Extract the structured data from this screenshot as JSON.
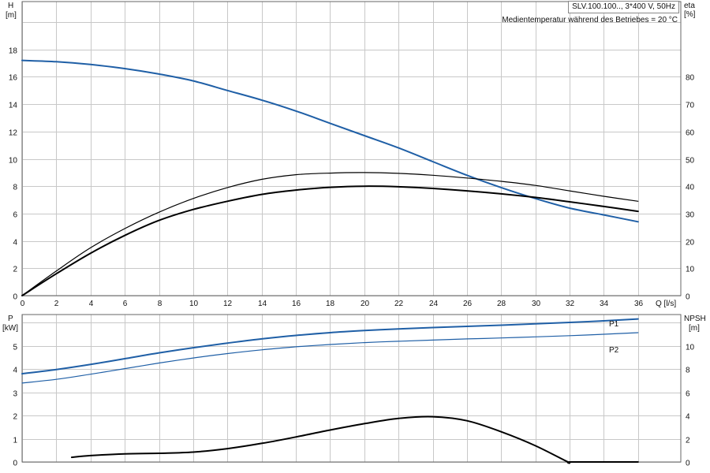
{
  "header": {
    "model_text": "SLV.100.100.., 3*400 V, 50Hz",
    "note": "Medientemperatur während des Betriebes = 20 °C"
  },
  "colors": {
    "blue": "#1f5fa6",
    "black": "#000000",
    "grid": "#c8c8c8"
  },
  "chart_data": [
    {
      "type": "line",
      "name": "head-efficiency",
      "x_label": "Q [l/s]",
      "x_ticks": [
        "0",
        "2",
        "4",
        "6",
        "8",
        "10",
        "12",
        "14",
        "16",
        "18",
        "20",
        "22",
        "24",
        "26",
        "28",
        "30",
        "32",
        "34",
        "36"
      ],
      "xlim": [
        0,
        38.5
      ],
      "y_left_label_top": "H",
      "y_left_label_unit": "[m]",
      "y_left_ticks": [
        "0",
        "2",
        "4",
        "6",
        "8",
        "10",
        "12",
        "14",
        "16",
        "18"
      ],
      "ylim_left": [
        0,
        21.5
      ],
      "y_right_label_top": "eta",
      "y_right_label_unit": "[%]",
      "y_right_ticks": [
        "0",
        "10",
        "20",
        "30",
        "40",
        "50",
        "60",
        "70",
        "80"
      ],
      "ylim_right": [
        0,
        107.5
      ],
      "grid": true,
      "series": [
        {
          "axis": "left",
          "color": "#1f5fa6",
          "width": 2,
          "x": [
            0,
            2,
            4,
            6,
            8,
            10,
            12,
            14,
            16,
            18,
            20,
            22,
            24,
            26,
            28,
            30,
            32,
            34,
            36
          ],
          "y": [
            17.2,
            17.1,
            16.9,
            16.6,
            16.2,
            15.7,
            15.0,
            14.3,
            13.5,
            12.6,
            11.7,
            10.8,
            9.8,
            8.8,
            7.9,
            7.1,
            6.4,
            5.9,
            5.4
          ]
        },
        {
          "axis": "right",
          "color": "#000000",
          "width": 1.2,
          "x": [
            0,
            2,
            4,
            6,
            8,
            10,
            12,
            14,
            16,
            18,
            20,
            22,
            24,
            26,
            28,
            30,
            32,
            34,
            36
          ],
          "y": [
            0,
            9,
            17.5,
            24.5,
            30.5,
            35.5,
            39.5,
            42.5,
            44.2,
            44.8,
            45,
            44.7,
            44,
            43,
            41.8,
            40.3,
            38.3,
            36.3,
            34.5
          ]
        },
        {
          "axis": "right",
          "color": "#000000",
          "width": 2,
          "x": [
            0,
            2,
            4,
            6,
            8,
            10,
            12,
            14,
            16,
            18,
            20,
            22,
            24,
            26,
            28,
            30,
            32,
            34,
            36
          ],
          "y": [
            0,
            8,
            15.5,
            22,
            27.5,
            31.5,
            34.5,
            37,
            38.6,
            39.6,
            40,
            39.8,
            39.2,
            38.3,
            37.2,
            35.9,
            34.3,
            32.6,
            30.8
          ]
        }
      ]
    },
    {
      "type": "line",
      "name": "power-npsh",
      "y_left_label_top": "P",
      "y_left_label_unit": "[kW]",
      "y_left_ticks": [
        "0",
        "1",
        "2",
        "3",
        "4",
        "5"
      ],
      "ylim_left": [
        0,
        6.35
      ],
      "y_right_label_top": "NPSH",
      "y_right_label_unit": "[m]",
      "y_right_ticks": [
        "0",
        "2",
        "4",
        "6",
        "8",
        "10"
      ],
      "ylim_right": [
        0,
        12.7
      ],
      "grid": true,
      "series": [
        {
          "axis": "left",
          "name": "P1",
          "color": "#1f5fa6",
          "width": 2,
          "x": [
            0,
            2,
            4,
            6,
            8,
            10,
            12,
            14,
            16,
            18,
            20,
            22,
            24,
            26,
            28,
            30,
            32,
            34,
            36
          ],
          "y": [
            3.8,
            3.98,
            4.2,
            4.45,
            4.7,
            4.92,
            5.12,
            5.3,
            5.45,
            5.57,
            5.66,
            5.73,
            5.79,
            5.84,
            5.89,
            5.95,
            6.01,
            6.08,
            6.16
          ]
        },
        {
          "axis": "left",
          "name": "P2",
          "color": "#1f5fa6",
          "width": 1.2,
          "x": [
            0,
            2,
            4,
            6,
            8,
            10,
            12,
            14,
            16,
            18,
            20,
            22,
            24,
            26,
            28,
            30,
            32,
            34,
            36
          ],
          "y": [
            3.4,
            3.56,
            3.78,
            4.02,
            4.26,
            4.48,
            4.67,
            4.83,
            4.96,
            5.06,
            5.14,
            5.2,
            5.25,
            5.3,
            5.34,
            5.39,
            5.44,
            5.5,
            5.57
          ]
        },
        {
          "axis": "right",
          "color": "#000000",
          "width": 2,
          "x": [
            2.9,
            4,
            6,
            8,
            10,
            12,
            14,
            16,
            18,
            20,
            22,
            24,
            26,
            28,
            30,
            31.9,
            32,
            34,
            36
          ],
          "y": [
            0.4,
            0.55,
            0.7,
            0.75,
            0.85,
            1.15,
            1.6,
            2.15,
            2.75,
            3.3,
            3.75,
            3.9,
            3.55,
            2.6,
            1.4,
            0,
            0,
            0,
            0
          ]
        }
      ]
    }
  ]
}
